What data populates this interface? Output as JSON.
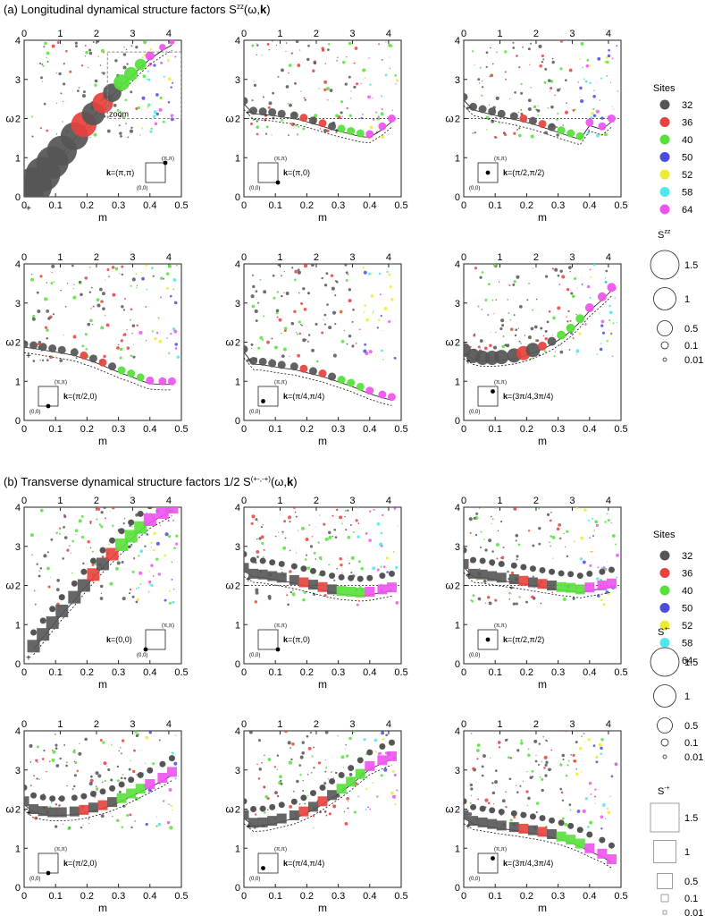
{
  "section_a": {
    "title_prefix": "(a) Longitudinal dynamical structure factors S",
    "title_sup": "zz",
    "title_suffix": "(ω,",
    "title_k": "k",
    "title_end": ")"
  },
  "section_b": {
    "title_prefix": "(b) Transverse dynamical structure factors 1/2 S",
    "title_sup": "(+-,-+)",
    "title_suffix": "(ω,",
    "title_k": "k",
    "title_end": ")"
  },
  "axes": {
    "xlabel": "m",
    "ylabel": "ω",
    "x_ticks": [
      "0",
      "0.1",
      "0.2",
      "0.3",
      "0.4",
      "0.5"
    ],
    "top_ticks": [
      "0",
      "1",
      "2",
      "3",
      "4"
    ],
    "y_ticks": [
      "0",
      "1",
      "2",
      "3",
      "4"
    ]
  },
  "legend": {
    "sites_title": "Sites",
    "sites": [
      {
        "label": "32",
        "color": "#555555"
      },
      {
        "label": "36",
        "color": "#e8413c"
      },
      {
        "label": "40",
        "color": "#55e03a"
      },
      {
        "label": "50",
        "color": "#4c4cdc"
      },
      {
        "label": "52",
        "color": "#ecec32"
      },
      {
        "label": "58",
        "color": "#4ee8ec"
      },
      {
        "label": "64",
        "color": "#ee52ee"
      }
    ],
    "szz_title": "S",
    "szz_sup": "zz",
    "spm_title": "S",
    "spm_sup": "+-",
    "smp_title": "S",
    "smp_sup": "-+",
    "size_labels": [
      "1.5",
      "1",
      "0.5",
      "0.1",
      "0.01"
    ]
  },
  "inset": {
    "corner_top": "(π,π)",
    "corner_bottom": "(0,0)",
    "zoom_label": "zoom"
  },
  "chart_data": [
    {
      "type": "scatter",
      "section": "a",
      "k_label": "=(π,π)",
      "xlim": [
        0,
        0.5
      ],
      "ylim": [
        0,
        4
      ],
      "x": [
        0.0,
        0.03,
        0.06,
        0.09,
        0.12,
        0.16,
        0.19,
        0.22,
        0.25,
        0.28,
        0.31,
        0.34,
        0.37,
        0.4,
        0.44,
        0.47
      ],
      "y": [
        0.0,
        0.28,
        0.58,
        0.88,
        1.18,
        1.55,
        1.85,
        2.12,
        2.4,
        2.66,
        2.92,
        3.14,
        3.38,
        3.6,
        3.82,
        3.96
      ]
    },
    {
      "type": "scatter",
      "section": "a",
      "k_label": "=(π,0)",
      "xlim": [
        0,
        0.5
      ],
      "ylim": [
        0,
        4
      ],
      "x": [
        0.0,
        0.03,
        0.06,
        0.09,
        0.12,
        0.16,
        0.19,
        0.22,
        0.25,
        0.28,
        0.31,
        0.34,
        0.37,
        0.4,
        0.44,
        0.47
      ],
      "y": [
        2.45,
        2.2,
        2.18,
        2.16,
        2.12,
        2.08,
        2.02,
        1.95,
        1.88,
        1.8,
        1.74,
        1.68,
        1.62,
        1.6,
        1.8,
        2.0
      ]
    },
    {
      "type": "scatter",
      "section": "a",
      "k_label": "=(π/2,π/2)",
      "xlim": [
        0,
        0.5
      ],
      "ylim": [
        0,
        4
      ],
      "x": [
        0.0,
        0.03,
        0.06,
        0.09,
        0.12,
        0.16,
        0.19,
        0.22,
        0.25,
        0.28,
        0.31,
        0.34,
        0.37,
        0.4,
        0.44,
        0.47
      ],
      "y": [
        2.55,
        2.3,
        2.24,
        2.18,
        2.12,
        2.06,
        2.0,
        1.94,
        1.86,
        1.78,
        1.7,
        1.62,
        1.55,
        1.9,
        1.8,
        2.0
      ]
    },
    {
      "type": "scatter",
      "section": "a",
      "k_label": "=(π/2,0)",
      "xlim": [
        0,
        0.5
      ],
      "ylim": [
        0,
        4
      ],
      "x": [
        0.0,
        0.03,
        0.06,
        0.09,
        0.12,
        0.16,
        0.19,
        0.22,
        0.25,
        0.28,
        0.31,
        0.34,
        0.37,
        0.4,
        0.44,
        0.47
      ],
      "y": [
        1.95,
        1.92,
        1.88,
        1.84,
        1.8,
        1.74,
        1.66,
        1.58,
        1.48,
        1.38,
        1.28,
        1.2,
        1.1,
        1.02,
        1.0,
        1.0
      ]
    },
    {
      "type": "scatter",
      "section": "a",
      "k_label": "=(π/4,π/4)",
      "xlim": [
        0,
        0.5
      ],
      "ylim": [
        0,
        4
      ],
      "x": [
        0.0,
        0.03,
        0.06,
        0.09,
        0.12,
        0.16,
        0.19,
        0.22,
        0.25,
        0.28,
        0.31,
        0.34,
        0.37,
        0.4,
        0.44,
        0.47
      ],
      "y": [
        1.82,
        1.52,
        1.5,
        1.46,
        1.42,
        1.38,
        1.32,
        1.26,
        1.2,
        1.12,
        1.04,
        0.96,
        0.86,
        0.76,
        0.66,
        0.6
      ]
    },
    {
      "type": "scatter",
      "section": "a",
      "k_label": "=(3π/4,3π/4)",
      "xlim": [
        0,
        0.5
      ],
      "ylim": [
        0,
        4
      ],
      "x": [
        0.0,
        0.03,
        0.06,
        0.09,
        0.12,
        0.16,
        0.19,
        0.22,
        0.25,
        0.28,
        0.31,
        0.34,
        0.37,
        0.4,
        0.44,
        0.47
      ],
      "y": [
        1.8,
        1.65,
        1.6,
        1.6,
        1.62,
        1.66,
        1.72,
        1.8,
        1.9,
        2.02,
        2.18,
        2.36,
        2.6,
        2.88,
        3.16,
        3.4
      ]
    },
    {
      "type": "scatter",
      "section": "b",
      "k_label": "=(0,0)",
      "xlim": [
        0,
        0.5
      ],
      "ylim": [
        0,
        4
      ],
      "x": [
        0.03,
        0.06,
        0.09,
        0.12,
        0.16,
        0.19,
        0.22,
        0.25,
        0.28,
        0.31,
        0.34,
        0.37,
        0.4,
        0.44,
        0.47
      ],
      "y": [
        0.45,
        0.75,
        1.05,
        1.35,
        1.7,
        2.0,
        2.28,
        2.55,
        2.8,
        3.04,
        3.26,
        3.48,
        3.68,
        3.86,
        4.0
      ]
    },
    {
      "type": "scatter",
      "section": "b",
      "k_label": "=(π,0)",
      "xlim": [
        0,
        0.5
      ],
      "ylim": [
        0,
        4
      ],
      "x": [
        0.0,
        0.03,
        0.06,
        0.09,
        0.12,
        0.16,
        0.19,
        0.22,
        0.25,
        0.28,
        0.31,
        0.34,
        0.37,
        0.4,
        0.44,
        0.47
      ],
      "y": [
        2.45,
        2.3,
        2.28,
        2.24,
        2.2,
        2.14,
        2.08,
        2.02,
        1.96,
        1.9,
        1.86,
        1.84,
        1.82,
        1.84,
        1.9,
        1.95
      ]
    },
    {
      "type": "scatter",
      "section": "b",
      "k_label": "=(π/2,π/2)",
      "xlim": [
        0,
        0.5
      ],
      "ylim": [
        0,
        4
      ],
      "x": [
        0.0,
        0.03,
        0.06,
        0.09,
        0.12,
        0.16,
        0.19,
        0.22,
        0.25,
        0.28,
        0.31,
        0.34,
        0.37,
        0.4,
        0.44,
        0.47
      ],
      "y": [
        2.55,
        2.3,
        2.28,
        2.24,
        2.2,
        2.16,
        2.12,
        2.08,
        2.04,
        2.0,
        1.96,
        1.94,
        1.9,
        1.95,
        2.0,
        2.05
      ]
    },
    {
      "type": "scatter",
      "section": "b",
      "k_label": "=(π/2,0)",
      "xlim": [
        0,
        0.5
      ],
      "ylim": [
        0,
        4
      ],
      "x": [
        0.0,
        0.03,
        0.06,
        0.09,
        0.12,
        0.16,
        0.19,
        0.22,
        0.25,
        0.28,
        0.31,
        0.34,
        0.37,
        0.4,
        0.44,
        0.47
      ],
      "y": [
        2.2,
        2.0,
        1.95,
        1.92,
        1.92,
        1.94,
        1.98,
        2.04,
        2.1,
        2.18,
        2.28,
        2.4,
        2.52,
        2.64,
        2.8,
        2.95
      ]
    },
    {
      "type": "scatter",
      "section": "b",
      "k_label": "=(π/4,π/4)",
      "xlim": [
        0,
        0.5
      ],
      "ylim": [
        0,
        4
      ],
      "x": [
        0.0,
        0.03,
        0.06,
        0.09,
        0.12,
        0.16,
        0.19,
        0.22,
        0.25,
        0.28,
        0.31,
        0.34,
        0.37,
        0.4,
        0.44,
        0.47
      ],
      "y": [
        1.85,
        1.65,
        1.66,
        1.7,
        1.76,
        1.84,
        1.94,
        2.06,
        2.2,
        2.36,
        2.52,
        2.7,
        2.9,
        3.1,
        3.25,
        3.35
      ]
    },
    {
      "type": "scatter",
      "section": "b",
      "k_label": "=(3π/4,3π/4)",
      "xlim": [
        0,
        0.5
      ],
      "ylim": [
        0,
        4
      ],
      "x": [
        0.0,
        0.03,
        0.06,
        0.09,
        0.12,
        0.16,
        0.19,
        0.22,
        0.25,
        0.28,
        0.31,
        0.34,
        0.37,
        0.4,
        0.44,
        0.47
      ],
      "y": [
        1.85,
        1.7,
        1.66,
        1.62,
        1.58,
        1.54,
        1.5,
        1.46,
        1.42,
        1.36,
        1.3,
        1.22,
        1.12,
        1.0,
        0.86,
        0.72
      ]
    }
  ]
}
